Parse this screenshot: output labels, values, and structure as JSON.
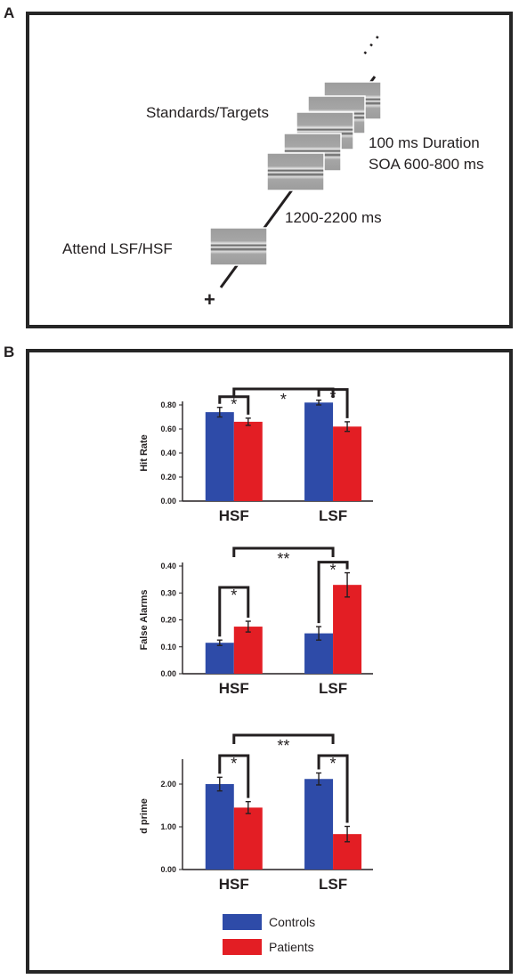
{
  "panel_a": {
    "letter": "A",
    "labels": {
      "standards_targets": "Standards/Targets",
      "duration": "100 ms Duration",
      "soa": "SOA 600-800 ms",
      "isi": "1200-2200 ms",
      "attend": "Attend LSF/HSF",
      "fixation": "+",
      "ellipsis": "·   ·   ·"
    }
  },
  "panel_b": {
    "letter": "B"
  },
  "legend": [
    {
      "label": "Controls",
      "color": "#2e4ba8"
    },
    {
      "label": "Patients",
      "color": "#e31e24"
    }
  ],
  "colors": {
    "controls": "#2e4ba8",
    "patients": "#e31e24",
    "frame": "#262626"
  },
  "chart_data": [
    {
      "type": "bar",
      "categories": [
        "HSF",
        "LSF"
      ],
      "ylabel": "Hit Rate",
      "ylim": [
        0,
        0.8
      ],
      "yticks": [
        "0.00",
        "0.20",
        "0.40",
        "0.60",
        "0.80"
      ],
      "series": [
        {
          "name": "Controls",
          "values": [
            0.74,
            0.82
          ],
          "errors": [
            0.04,
            0.02
          ]
        },
        {
          "name": "Patients",
          "values": [
            0.66,
            0.62
          ],
          "errors": [
            0.03,
            0.04
          ]
        }
      ],
      "annotations": {
        "within": [
          "*",
          "*"
        ],
        "between": "*"
      }
    },
    {
      "type": "bar",
      "categories": [
        "HSF",
        "LSF"
      ],
      "ylabel": "False Alarms",
      "ylim": [
        0,
        0.4
      ],
      "yticks": [
        "0.00",
        "0.10",
        "0.20",
        "0.30",
        "0.40"
      ],
      "series": [
        {
          "name": "Controls",
          "values": [
            0.115,
            0.15
          ],
          "errors": [
            0.01,
            0.025
          ]
        },
        {
          "name": "Patients",
          "values": [
            0.175,
            0.33
          ],
          "errors": [
            0.02,
            0.045
          ]
        }
      ],
      "annotations": {
        "within": [
          "*",
          "*"
        ],
        "between": "**"
      }
    },
    {
      "type": "bar",
      "categories": [
        "HSF",
        "LSF"
      ],
      "ylabel": "d prime",
      "ylim": [
        0,
        2.5
      ],
      "yticks": [
        "0.00",
        "1.00",
        "2.00"
      ],
      "series": [
        {
          "name": "Controls",
          "values": [
            2.0,
            2.12
          ],
          "errors": [
            0.16,
            0.14
          ]
        },
        {
          "name": "Patients",
          "values": [
            1.45,
            0.83
          ],
          "errors": [
            0.14,
            0.18
          ]
        }
      ],
      "annotations": {
        "within": [
          "*",
          "*"
        ],
        "between": "**"
      }
    }
  ]
}
